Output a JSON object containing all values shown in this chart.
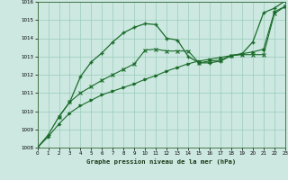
{
  "title": "Graphe pression niveau de la mer (hPa)",
  "bg_color": "#cce8e0",
  "grid_color": "#99ccbb",
  "line_color": "#1a6b2a",
  "xlim": [
    0,
    23
  ],
  "ylim": [
    1008,
    1016
  ],
  "yticks": [
    1008,
    1009,
    1010,
    1011,
    1012,
    1013,
    1014,
    1015,
    1016
  ],
  "xticks": [
    0,
    1,
    2,
    3,
    4,
    5,
    6,
    7,
    8,
    9,
    10,
    11,
    12,
    13,
    14,
    15,
    16,
    17,
    18,
    19,
    20,
    21,
    22,
    23
  ],
  "s1_x": [
    0,
    1,
    2,
    3,
    4,
    5,
    6,
    7,
    8,
    9,
    10,
    11,
    12,
    13,
    14,
    15,
    16,
    17,
    18,
    19,
    20,
    21,
    22,
    23
  ],
  "s1_y": [
    1008.0,
    1008.7,
    1009.7,
    1010.5,
    1011.9,
    1012.7,
    1013.2,
    1013.8,
    1014.3,
    1014.6,
    1014.8,
    1014.75,
    1014.0,
    1013.9,
    1013.0,
    1012.65,
    1012.65,
    1012.75,
    1013.05,
    1013.15,
    1013.8,
    1015.4,
    1015.65,
    1016.05
  ],
  "s2_x": [
    0,
    1,
    2,
    3,
    4,
    5,
    6,
    7,
    8,
    9,
    10,
    11,
    12,
    13,
    14,
    15,
    16,
    17,
    18,
    19,
    20,
    21,
    22,
    23
  ],
  "s2_y": [
    1008.0,
    1008.6,
    1009.3,
    1009.9,
    1010.3,
    1010.6,
    1010.9,
    1011.1,
    1011.3,
    1011.5,
    1011.75,
    1011.95,
    1012.2,
    1012.4,
    1012.6,
    1012.75,
    1012.85,
    1012.95,
    1013.05,
    1013.15,
    1013.25,
    1013.4,
    1015.45,
    1015.75
  ],
  "s3_x": [
    2,
    3,
    4,
    5,
    6,
    7,
    8,
    9,
    10,
    11,
    12,
    13,
    14,
    15,
    16,
    17,
    18,
    19,
    20,
    21,
    22,
    23
  ],
  "s3_y": [
    1009.7,
    1010.5,
    1011.0,
    1011.35,
    1011.7,
    1012.0,
    1012.3,
    1012.6,
    1013.35,
    1013.4,
    1013.3,
    1013.3,
    1013.3,
    1012.65,
    1012.75,
    1012.8,
    1013.05,
    1013.1,
    1013.1,
    1013.1,
    1015.35,
    1015.75
  ]
}
